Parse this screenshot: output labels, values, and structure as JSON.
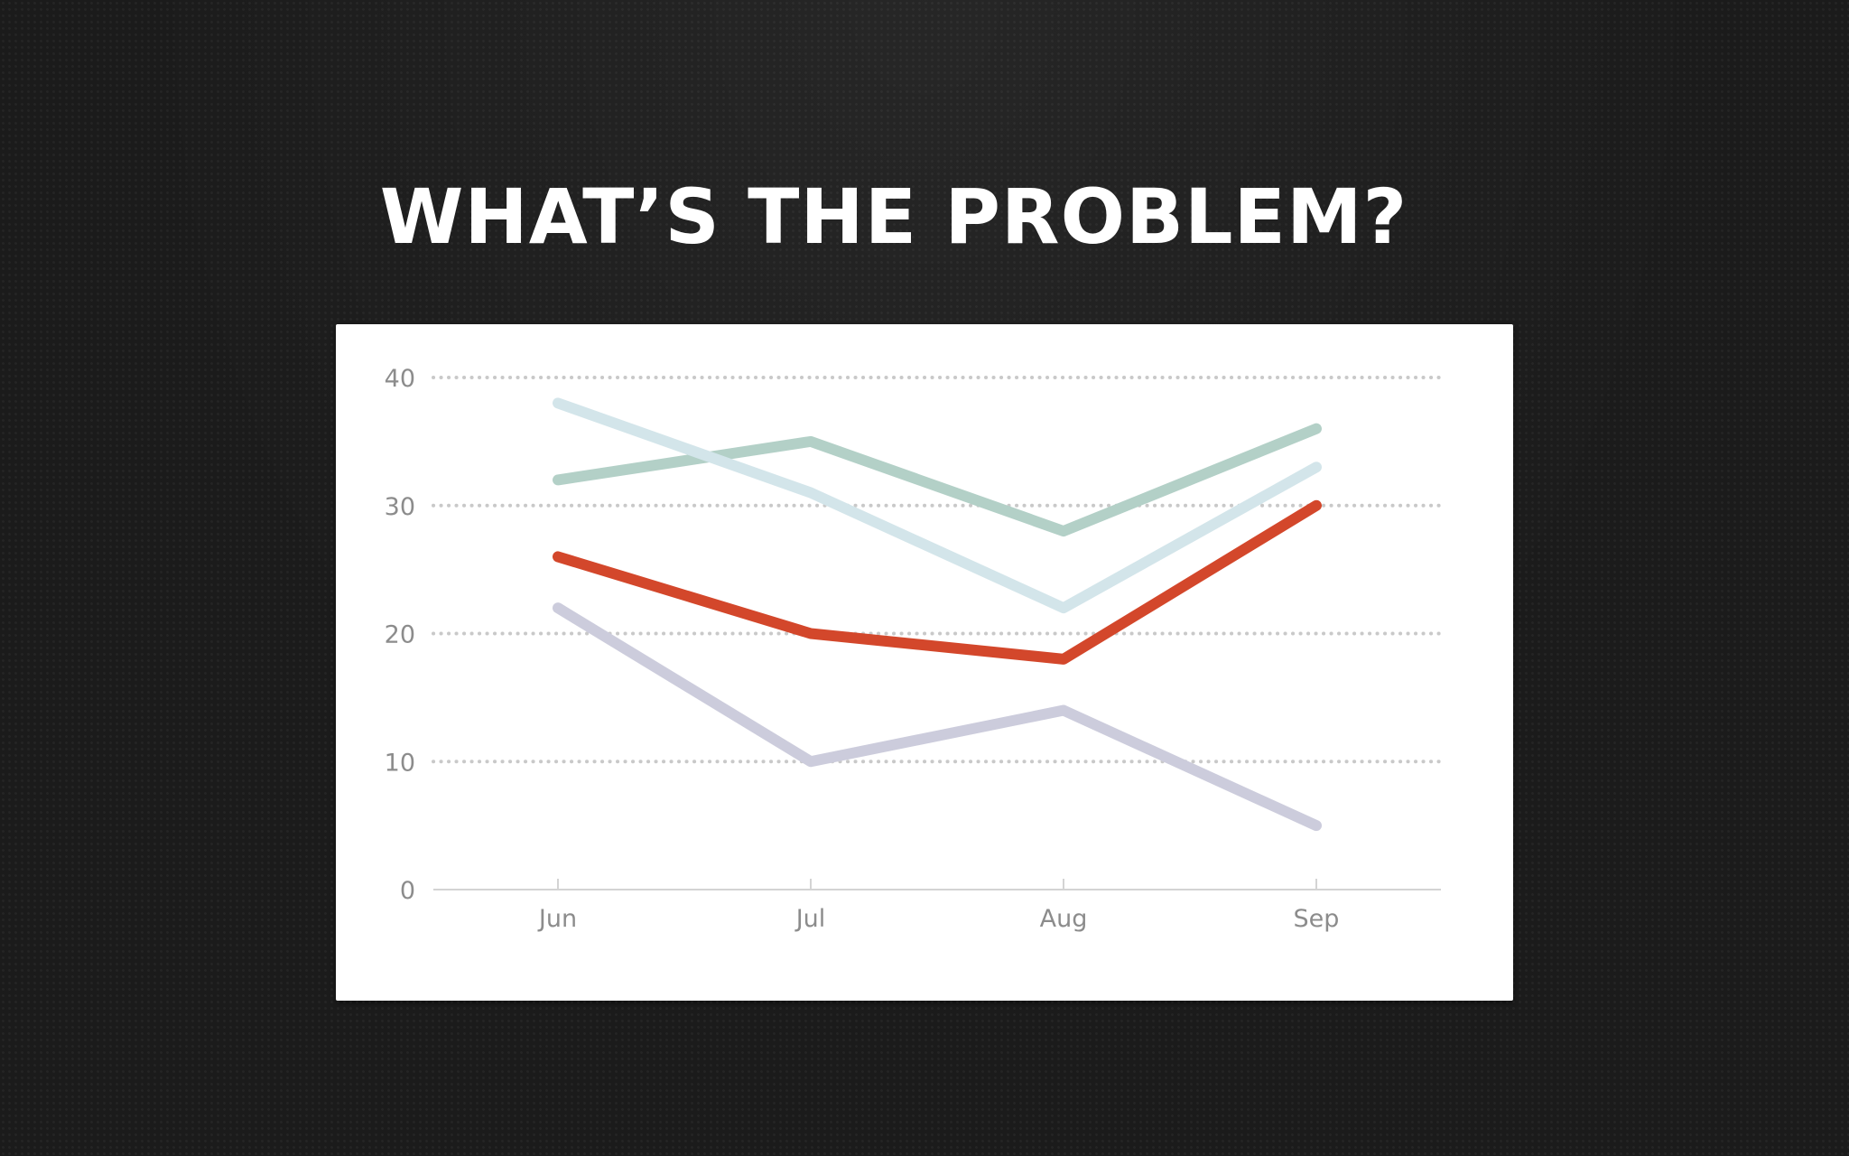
{
  "slide": {
    "title": "WHAT’S THE PROBLEM?"
  },
  "chart_data": {
    "type": "line",
    "categories": [
      "Jun",
      "Jul",
      "Aug",
      "Sep"
    ],
    "ylim": [
      0,
      40
    ],
    "yticks": [
      0,
      10,
      20,
      30,
      40
    ],
    "grid": true,
    "legend": "none",
    "series": [
      {
        "color": "#b3d0c7",
        "values": [
          32,
          35,
          28,
          36
        ]
      },
      {
        "color": "#d3e5ea",
        "values": [
          38,
          31,
          22,
          33
        ]
      },
      {
        "color": "#ccccdc",
        "values": [
          22,
          10,
          14,
          5
        ]
      },
      {
        "color": "#d3472b",
        "values": [
          26,
          20,
          18,
          30
        ]
      }
    ]
  }
}
